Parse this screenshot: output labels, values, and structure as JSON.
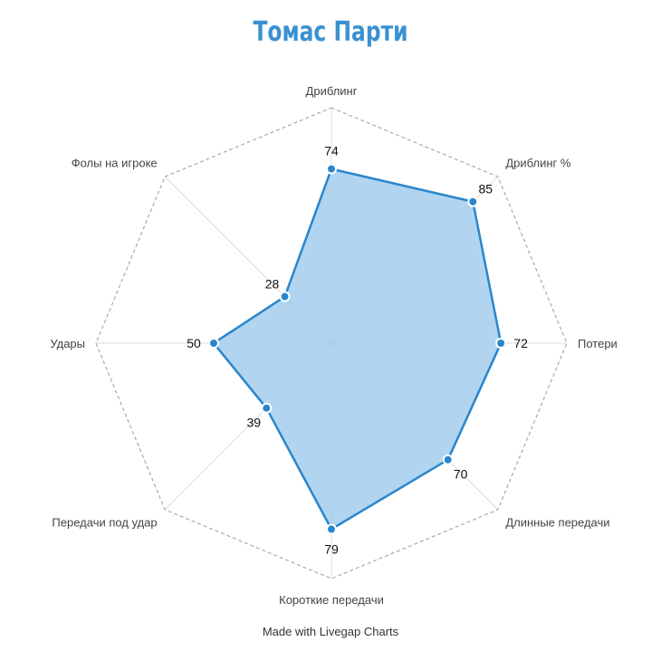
{
  "chart_data": {
    "type": "radar",
    "title": "Томас Парти",
    "axes": [
      "Дриблинг",
      "Дриблинг %",
      "Потери",
      "Длинные передачи",
      "Короткие передачи",
      "Передачи под удар",
      "Удары",
      "Фолы на игроке"
    ],
    "series": [
      {
        "values": [
          74,
          85,
          72,
          70,
          79,
          39,
          50,
          28
        ]
      }
    ],
    "range": [
      0,
      100
    ],
    "grid": "octagon outer only, dashed",
    "data_labels": true
  },
  "colors": {
    "title": "#3a91d2",
    "line": "#2a86cc",
    "fill": "#9ecbee",
    "point_fill": "#2a86cc",
    "point_stroke": "#ffffff",
    "grid": "#aaaaaa",
    "spoke": "#dddddd"
  },
  "footer": "Made with Livegap Charts"
}
